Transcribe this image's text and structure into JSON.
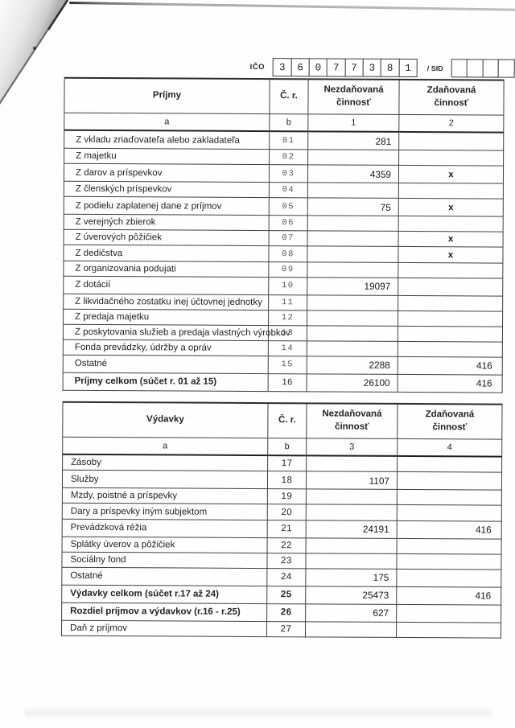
{
  "colors": {
    "paper": "#fefefe",
    "ink": "#1d1d1d",
    "table_line": "#2b2b2b",
    "row_number_muted": "#555555",
    "fold_shadow": "#b5b5b5"
  },
  "ico": {
    "label": "IČO",
    "digits": [
      "3",
      "6",
      "0",
      "7",
      "7",
      "3",
      "8",
      "1"
    ],
    "sid_label": "/ SID",
    "sid_empty_count": 4
  },
  "income_table": {
    "headers": [
      "Príjmy",
      "Č. r.",
      "Nezdaňovaná\nčinnosť",
      "Zdaňovaná\nčinnosť"
    ],
    "subheaders": [
      "a",
      "b",
      "1",
      "2"
    ],
    "rows": [
      {
        "label": "Z vkladu zriaďovateľa alebo zakladateľa",
        "nr": "01",
        "v1": "281",
        "v2": ""
      },
      {
        "label": "Z majetku",
        "nr": "02",
        "v1": "",
        "v2": ""
      },
      {
        "label": "Z darov a príspevkov",
        "nr": "03",
        "v1": "4359",
        "v2": "x"
      },
      {
        "label": "Z členských príspevkov",
        "nr": "04",
        "v1": "",
        "v2": ""
      },
      {
        "label": "Z podielu zaplatenej dane z príjmov",
        "nr": "05",
        "v1": "75",
        "v2": "x"
      },
      {
        "label": "Z verejných zbierok",
        "nr": "06",
        "v1": "",
        "v2": ""
      },
      {
        "label": "Z úverových pôžičiek",
        "nr": "07",
        "v1": "",
        "v2": "x"
      },
      {
        "label": "Z dedičstva",
        "nr": "08",
        "v1": "",
        "v2": "x"
      },
      {
        "label": "Z organizovania podujati",
        "nr": "09",
        "v1": "",
        "v2": ""
      },
      {
        "label": "Z dotácií",
        "nr": "10",
        "v1": "19097",
        "v2": ""
      },
      {
        "label": "Z likvidačného zostatku inej účtovnej jednotky",
        "nr": "11",
        "v1": "",
        "v2": ""
      },
      {
        "label": "Z predaja majetku",
        "nr": "12",
        "v1": "",
        "v2": ""
      },
      {
        "label": "Z poskytovania služieb a predaja vlastných výrobkov",
        "nr": "13",
        "v1": "",
        "v2": ""
      },
      {
        "label": "Fonda prevádzky, údržby a opráv",
        "nr": "14",
        "v1": "",
        "v2": ""
      },
      {
        "label": "Ostatné",
        "nr": "15",
        "v1": "2288",
        "v2": "416"
      },
      {
        "label": "Príjmy celkom (súčet r. 01 až 15)",
        "nr": "16",
        "v1": "26100",
        "v2": "416",
        "bold": true
      }
    ]
  },
  "expense_table": {
    "headers": [
      "Výdavky",
      "Č. r.",
      "Nezdaňovaná\nčinnosť",
      "Zdaňovaná\nčinnosť"
    ],
    "subheaders": [
      "a",
      "b",
      "3",
      "4"
    ],
    "rows": [
      {
        "label": "Zásoby",
        "nr": "17",
        "v1": "",
        "v2": ""
      },
      {
        "label": "Služby",
        "nr": "18",
        "v1": "1107",
        "v2": ""
      },
      {
        "label": "Mzdy, poistné a príspevky",
        "nr": "19",
        "v1": "",
        "v2": ""
      },
      {
        "label": "Dary a príspevky iným subjektom",
        "nr": "20",
        "v1": "",
        "v2": ""
      },
      {
        "label": "Prevádzková réžia",
        "nr": "21",
        "v1": "24191",
        "v2": "416"
      },
      {
        "label": "Splátky úverov a pôžičiek",
        "nr": "22",
        "v1": "",
        "v2": ""
      },
      {
        "label": "Sociálny fond",
        "nr": "23",
        "v1": "",
        "v2": ""
      },
      {
        "label": "Ostatné",
        "nr": "24",
        "v1": "175",
        "v2": ""
      },
      {
        "label": "Výdavky celkom (súčet r.17 až 24)",
        "nr": "25",
        "v1": "25473",
        "v2": "416",
        "bold": true
      },
      {
        "label": "Rozdiel príjmov a výdavkov (r.16 - r.25)",
        "nr": "26",
        "v1": "627",
        "v2": "",
        "bold": true
      },
      {
        "label": "Daň z príjmov",
        "nr": "27",
        "v1": "",
        "v2": ""
      }
    ]
  }
}
